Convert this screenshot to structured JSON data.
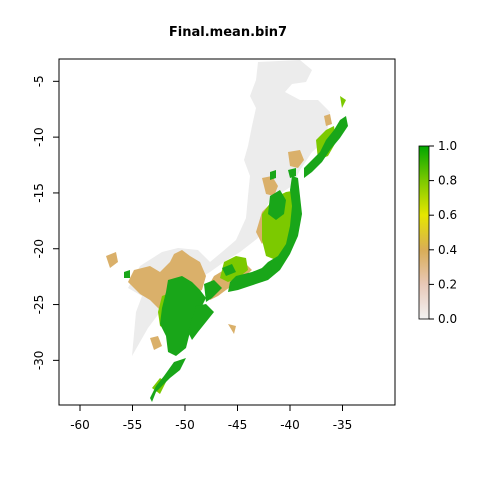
{
  "title": "Final.mean.bin7",
  "colors": {
    "background_mask": "#ececec",
    "low": "#f2d8d0",
    "mid_low": "#dab06a",
    "mid": "#d9ad56",
    "yellow": "#e6e600",
    "light_green": "#7cc900",
    "green": "#19a619",
    "dark_green": "#00a600",
    "axis": "#000000"
  },
  "map": {
    "x_axis": {
      "ticks": [
        -60,
        -55,
        -50,
        -45,
        -40,
        -35
      ],
      "tick_labels": [
        "-60",
        "-55",
        "-50",
        "-45",
        "-40",
        "-35"
      ],
      "xlim": [
        -62,
        -30
      ]
    },
    "y_axis": {
      "ticks": [
        -5,
        -10,
        -15,
        -20,
        -25,
        -30
      ],
      "tick_labels": [
        "-5",
        "-10",
        "-15",
        "-20",
        "-25",
        "-30"
      ],
      "ylim": [
        -34,
        -3
      ]
    }
  },
  "legend": {
    "type": "colorbar",
    "range": [
      0.0,
      1.0
    ],
    "ticks": [
      0.0,
      0.2,
      0.4,
      0.6,
      0.8,
      1.0
    ],
    "tick_labels": [
      "0.0",
      "0.2",
      "0.4",
      "0.6",
      "0.8",
      "1.0"
    ],
    "stops": [
      "#f2f2f2",
      "#e8c8b8",
      "#d9ad56",
      "#e6e600",
      "#7cc900",
      "#00a600"
    ]
  }
}
